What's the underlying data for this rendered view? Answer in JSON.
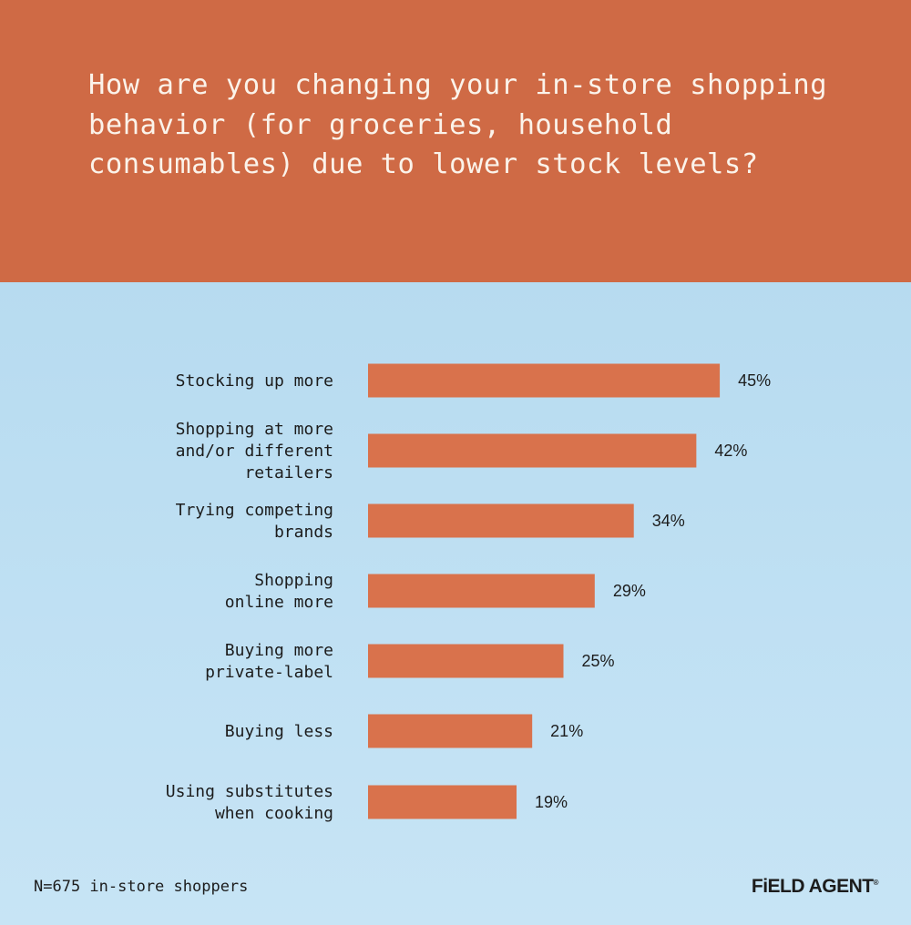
{
  "chart_data": {
    "type": "bar",
    "orientation": "horizontal",
    "title": "How are you changing your in-store shopping behavior (for groceries, household consumables) due to lower stock levels?",
    "categories": [
      [
        "Stocking up more"
      ],
      [
        "Shopping at more",
        "and/or different",
        "retailers"
      ],
      [
        "Trying competing",
        "brands"
      ],
      [
        "Shopping",
        "online more"
      ],
      [
        "Buying more",
        "private-label"
      ],
      [
        "Buying less"
      ],
      [
        "Using substitutes",
        "when cooking"
      ]
    ],
    "values": [
      45,
      42,
      34,
      29,
      25,
      21,
      19
    ],
    "value_labels": [
      "45%",
      "42%",
      "34%",
      "29%",
      "25%",
      "21%",
      "19%"
    ],
    "unit": "%",
    "xlim": [
      0,
      100
    ],
    "grid": false,
    "bar_color": "#d9724c"
  },
  "footnote": "N=675 in-store shoppers",
  "brand": "FiELD AGENT",
  "colors": {
    "header_bg": "#cf6a45",
    "panel_bg": "#bfe0f3",
    "title_text": "#fbf3ea",
    "body_text": "#1c1c1c"
  }
}
